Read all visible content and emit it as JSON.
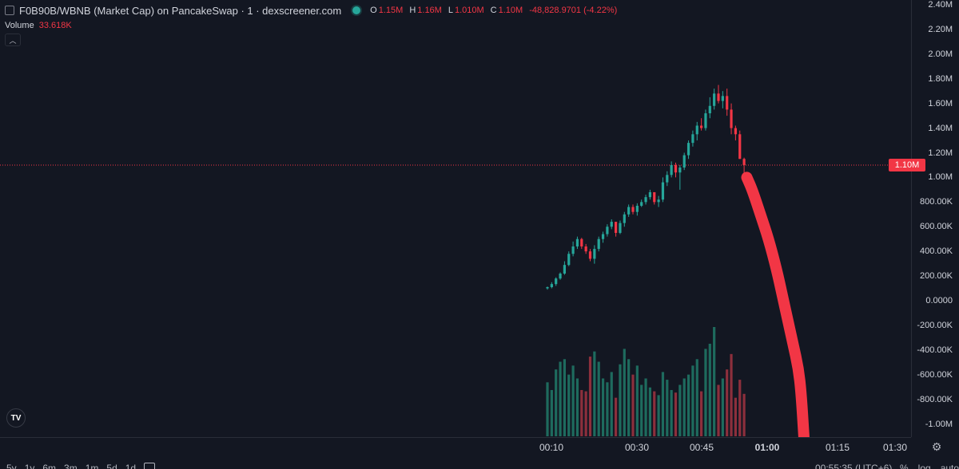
{
  "header": {
    "symbol_title": "F0B90B/WBNB (Market Cap) on PancakeSwap · 1 · dexscreener.com",
    "ohlc": {
      "o_label": "O",
      "o_value": "1.15M",
      "h_label": "H",
      "h_value": "1.16M",
      "l_label": "L",
      "l_value": "1.010M",
      "c_label": "C",
      "c_value": "1.10M",
      "change": "-48,828.9701 (-4.22%)"
    },
    "volume_label": "Volume",
    "volume_value": "33.618K",
    "collapse_icon": "chevron-up-icon"
  },
  "price_axis": {
    "ticks": [
      "2.40M",
      "2.20M",
      "2.00M",
      "1.80M",
      "1.60M",
      "1.40M",
      "1.20M",
      "1.00M",
      "800.00K",
      "600.00K",
      "400.00K",
      "200.00K",
      "0.0000",
      "-200.00K",
      "-400.00K",
      "-600.00K",
      "-800.00K",
      "-1.00M"
    ],
    "last_price_label": "1.10M"
  },
  "time_axis": {
    "ticks": [
      {
        "label": "00:10",
        "bold": false
      },
      {
        "label": "00:30",
        "bold": false
      },
      {
        "label": "00:45",
        "bold": false
      },
      {
        "label": "01:00",
        "bold": true
      },
      {
        "label": "01:15",
        "bold": false
      },
      {
        "label": "01:30",
        "bold": false
      }
    ],
    "settings_icon": "gear-icon"
  },
  "bottom_bar": {
    "timeframes": [
      "5y",
      "1y",
      "6m",
      "3m",
      "1m",
      "5d",
      "1d"
    ],
    "calendar_icon": "calendar-icon",
    "clock": "00:55:35 (UTC+6)",
    "scale_options": [
      "%",
      "log",
      "auto"
    ]
  },
  "branding": {
    "logo_text": "TV"
  },
  "colors": {
    "background": "#131722",
    "up": "#26a69a",
    "down": "#f23645",
    "volume_up": "#1e6b5e",
    "volume_down": "#8c2f3c",
    "price_line": "#f23645",
    "annotation": "#f23645"
  },
  "chart_data": {
    "type": "candlestick",
    "price_unit": "market cap",
    "ylim": [
      -1100000,
      2450000
    ],
    "last_price": 1100000,
    "candles": [
      {
        "o": 100000,
        "h": 115000,
        "l": 90000,
        "c": 110000,
        "v": 42
      },
      {
        "o": 110000,
        "h": 150000,
        "l": 100000,
        "c": 135000,
        "v": 36
      },
      {
        "o": 135000,
        "h": 190000,
        "l": 120000,
        "c": 180000,
        "v": 52
      },
      {
        "o": 180000,
        "h": 230000,
        "l": 170000,
        "c": 220000,
        "v": 58
      },
      {
        "o": 220000,
        "h": 320000,
        "l": 210000,
        "c": 290000,
        "v": 60
      },
      {
        "o": 290000,
        "h": 400000,
        "l": 280000,
        "c": 380000,
        "v": 48
      },
      {
        "o": 380000,
        "h": 480000,
        "l": 360000,
        "c": 440000,
        "v": 55
      },
      {
        "o": 440000,
        "h": 520000,
        "l": 420000,
        "c": 500000,
        "v": 45
      },
      {
        "o": 500000,
        "h": 510000,
        "l": 420000,
        "c": 440000,
        "v": 36
      },
      {
        "o": 440000,
        "h": 460000,
        "l": 380000,
        "c": 400000,
        "v": 35
      },
      {
        "o": 400000,
        "h": 420000,
        "l": 320000,
        "c": 340000,
        "v": 62
      },
      {
        "o": 340000,
        "h": 450000,
        "l": 300000,
        "c": 420000,
        "v": 66
      },
      {
        "o": 420000,
        "h": 520000,
        "l": 400000,
        "c": 500000,
        "v": 58
      },
      {
        "o": 500000,
        "h": 560000,
        "l": 470000,
        "c": 540000,
        "v": 45
      },
      {
        "o": 540000,
        "h": 620000,
        "l": 520000,
        "c": 600000,
        "v": 42
      },
      {
        "o": 600000,
        "h": 660000,
        "l": 580000,
        "c": 640000,
        "v": 50
      },
      {
        "o": 640000,
        "h": 640000,
        "l": 520000,
        "c": 550000,
        "v": 30
      },
      {
        "o": 550000,
        "h": 650000,
        "l": 540000,
        "c": 630000,
        "v": 56
      },
      {
        "o": 630000,
        "h": 720000,
        "l": 600000,
        "c": 700000,
        "v": 68
      },
      {
        "o": 700000,
        "h": 780000,
        "l": 680000,
        "c": 760000,
        "v": 60
      },
      {
        "o": 760000,
        "h": 780000,
        "l": 700000,
        "c": 720000,
        "v": 48
      },
      {
        "o": 720000,
        "h": 790000,
        "l": 690000,
        "c": 770000,
        "v": 55
      },
      {
        "o": 770000,
        "h": 820000,
        "l": 760000,
        "c": 800000,
        "v": 40
      },
      {
        "o": 800000,
        "h": 860000,
        "l": 780000,
        "c": 840000,
        "v": 45
      },
      {
        "o": 840000,
        "h": 900000,
        "l": 820000,
        "c": 880000,
        "v": 38
      },
      {
        "o": 880000,
        "h": 880000,
        "l": 780000,
        "c": 800000,
        "v": 35
      },
      {
        "o": 800000,
        "h": 850000,
        "l": 760000,
        "c": 820000,
        "v": 32
      },
      {
        "o": 820000,
        "h": 1000000,
        "l": 800000,
        "c": 960000,
        "v": 50
      },
      {
        "o": 960000,
        "h": 1050000,
        "l": 930000,
        "c": 1020000,
        "v": 44
      },
      {
        "o": 1020000,
        "h": 1130000,
        "l": 1000000,
        "c": 1100000,
        "v": 36
      },
      {
        "o": 1100000,
        "h": 1120000,
        "l": 1000000,
        "c": 1040000,
        "v": 34
      },
      {
        "o": 1040000,
        "h": 1100000,
        "l": 900000,
        "c": 1080000,
        "v": 40
      },
      {
        "o": 1080000,
        "h": 1200000,
        "l": 1060000,
        "c": 1180000,
        "v": 45
      },
      {
        "o": 1180000,
        "h": 1300000,
        "l": 1150000,
        "c": 1280000,
        "v": 48
      },
      {
        "o": 1280000,
        "h": 1380000,
        "l": 1250000,
        "c": 1350000,
        "v": 55
      },
      {
        "o": 1350000,
        "h": 1450000,
        "l": 1300000,
        "c": 1420000,
        "v": 60
      },
      {
        "o": 1420000,
        "h": 1480000,
        "l": 1380000,
        "c": 1400000,
        "v": 35
      },
      {
        "o": 1400000,
        "h": 1550000,
        "l": 1380000,
        "c": 1520000,
        "v": 68
      },
      {
        "o": 1520000,
        "h": 1650000,
        "l": 1480000,
        "c": 1580000,
        "v": 72
      },
      {
        "o": 1580000,
        "h": 1720000,
        "l": 1550000,
        "c": 1680000,
        "v": 85
      },
      {
        "o": 1680000,
        "h": 1750000,
        "l": 1600000,
        "c": 1620000,
        "v": 40
      },
      {
        "o": 1620000,
        "h": 1700000,
        "l": 1560000,
        "c": 1660000,
        "v": 45
      },
      {
        "o": 1660000,
        "h": 1720000,
        "l": 1500000,
        "c": 1550000,
        "v": 52
      },
      {
        "o": 1550000,
        "h": 1600000,
        "l": 1350000,
        "c": 1400000,
        "v": 64
      },
      {
        "o": 1400000,
        "h": 1420000,
        "l": 1300000,
        "c": 1350000,
        "v": 30
      },
      {
        "o": 1350000,
        "h": 1380000,
        "l": 1150000,
        "c": 1150000,
        "v": 44
      },
      {
        "o": 1150000,
        "h": 1160000,
        "l": 1010000,
        "c": 1100000,
        "v": 33
      }
    ],
    "annotation_curve": [
      [
        1,
        1000000
      ],
      [
        3,
        900000
      ],
      [
        6,
        700000
      ],
      [
        9,
        500000
      ],
      [
        12,
        250000
      ],
      [
        14,
        50000
      ],
      [
        16,
        -150000
      ],
      [
        18,
        -350000
      ],
      [
        20,
        -550000
      ],
      [
        21,
        -750000
      ],
      [
        22,
        -1100000
      ]
    ]
  }
}
